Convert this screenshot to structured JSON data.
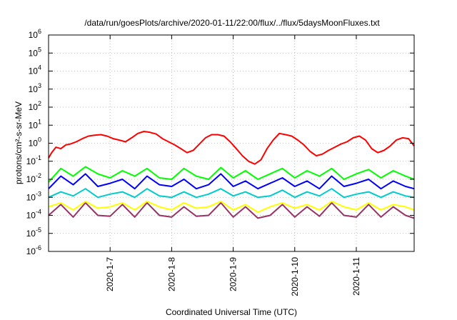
{
  "chart_data": {
    "type": "line",
    "title": "/data/run/goesPlots/archive/2020-01-11/22:00/flux/../flux/5daysMoonFluxes.txt",
    "xlabel": "Coordinated Universal Time (UTC)",
    "ylabel": "protons/cm²-s-sr-MeV",
    "y_scale": "log",
    "ylim": [
      1e-06,
      1000000.0
    ],
    "xlim": [
      6.0,
      11.94
    ],
    "x_unit": "January 2020 (day of month)",
    "x_ticks": [
      {
        "x": 7,
        "label": "2020-1-7"
      },
      {
        "x": 8,
        "label": "2020-1-8"
      },
      {
        "x": 9,
        "label": "2020-1-9"
      },
      {
        "x": 10,
        "label": "2020-1-10"
      },
      {
        "x": 11,
        "label": "2020-1-11"
      }
    ],
    "y_ticks": [
      {
        "v": 1e-06,
        "base": "10",
        "exp": "-6"
      },
      {
        "v": 1e-05,
        "base": "10",
        "exp": "-5"
      },
      {
        "v": 0.0001,
        "base": "10",
        "exp": "-4"
      },
      {
        "v": 0.001,
        "base": "10",
        "exp": "-3"
      },
      {
        "v": 0.01,
        "base": "10",
        "exp": "-2"
      },
      {
        "v": 0.1,
        "base": "10",
        "exp": "-1"
      },
      {
        "v": 1.0,
        "base": "10",
        "exp": "0"
      },
      {
        "v": 10.0,
        "base": "10",
        "exp": "1"
      },
      {
        "v": 100.0,
        "base": "10",
        "exp": "2"
      },
      {
        "v": 1000.0,
        "base": "10",
        "exp": "3"
      },
      {
        "v": 10000.0,
        "base": "10",
        "exp": "4"
      },
      {
        "v": 100000.0,
        "base": "10",
        "exp": "5"
      },
      {
        "v": 1000000.0,
        "base": "10",
        "exp": "6"
      }
    ],
    "grid": true,
    "series": [
      {
        "color": "#ff0000",
        "x": [
          6.0,
          6.05,
          6.12,
          6.2,
          6.28,
          6.35,
          6.45,
          6.55,
          6.65,
          6.75,
          6.85,
          6.95,
          7.05,
          7.15,
          7.25,
          7.35,
          7.45,
          7.55,
          7.65,
          7.75,
          7.85,
          7.95,
          8.05,
          8.15,
          8.25,
          8.35,
          8.45,
          8.55,
          8.65,
          8.75,
          8.85,
          8.95,
          9.05,
          9.15,
          9.25,
          9.35,
          9.45,
          9.55,
          9.65,
          9.75,
          9.85,
          9.95,
          10.05,
          10.15,
          10.25,
          10.35,
          10.45,
          10.55,
          10.65,
          10.75,
          10.85,
          10.95,
          11.05,
          11.15,
          11.25,
          11.35,
          11.45,
          11.55,
          11.65,
          11.75,
          11.85,
          11.94
        ],
        "y": [
          0.15,
          0.3,
          0.6,
          0.5,
          0.8,
          0.9,
          1.2,
          1.8,
          2.5,
          2.8,
          3.0,
          2.5,
          1.8,
          1.5,
          1.2,
          2.0,
          3.5,
          4.5,
          4.0,
          3.2,
          1.8,
          1.2,
          0.8,
          0.5,
          0.3,
          0.4,
          0.9,
          2.0,
          3.0,
          3.0,
          2.5,
          1.2,
          0.5,
          0.2,
          0.1,
          0.07,
          0.12,
          0.5,
          1.5,
          3.5,
          3.0,
          2.5,
          1.5,
          0.8,
          0.35,
          0.2,
          0.25,
          0.4,
          0.6,
          0.9,
          1.2,
          2.0,
          2.5,
          1.5,
          0.5,
          0.3,
          0.4,
          0.7,
          1.5,
          2.0,
          1.8,
          0.7
        ]
      },
      {
        "color": "#00ff00",
        "x": [
          6.0,
          6.2,
          6.4,
          6.6,
          6.8,
          7.0,
          7.2,
          7.4,
          7.6,
          7.8,
          8.0,
          8.2,
          8.4,
          8.6,
          8.8,
          9.0,
          9.2,
          9.4,
          9.6,
          9.8,
          10.0,
          10.2,
          10.4,
          10.6,
          10.8,
          11.0,
          11.2,
          11.4,
          11.6,
          11.8,
          11.94
        ],
        "y": [
          0.007,
          0.04,
          0.015,
          0.05,
          0.02,
          0.012,
          0.03,
          0.015,
          0.04,
          0.012,
          0.01,
          0.04,
          0.015,
          0.01,
          0.045,
          0.012,
          0.03,
          0.01,
          0.02,
          0.04,
          0.012,
          0.03,
          0.015,
          0.04,
          0.01,
          0.02,
          0.035,
          0.012,
          0.03,
          0.015,
          0.01
        ]
      },
      {
        "color": "#0000ff",
        "x": [
          6.0,
          6.2,
          6.4,
          6.6,
          6.8,
          7.0,
          7.2,
          7.4,
          7.6,
          7.8,
          8.0,
          8.2,
          8.4,
          8.6,
          8.8,
          9.0,
          9.2,
          9.4,
          9.6,
          9.8,
          10.0,
          10.2,
          10.4,
          10.6,
          10.8,
          11.0,
          11.2,
          11.4,
          11.6,
          11.8,
          11.94
        ],
        "y": [
          0.003,
          0.015,
          0.005,
          0.02,
          0.004,
          0.006,
          0.01,
          0.003,
          0.015,
          0.005,
          0.004,
          0.01,
          0.003,
          0.005,
          0.02,
          0.004,
          0.008,
          0.003,
          0.006,
          0.012,
          0.004,
          0.008,
          0.003,
          0.015,
          0.004,
          0.006,
          0.01,
          0.003,
          0.008,
          0.004,
          0.003
        ]
      },
      {
        "color": "#00cccc",
        "x": [
          6.0,
          6.2,
          6.4,
          6.6,
          6.8,
          7.0,
          7.2,
          7.4,
          7.6,
          7.8,
          8.0,
          8.2,
          8.4,
          8.6,
          8.8,
          9.0,
          9.2,
          9.4,
          9.6,
          9.8,
          10.0,
          10.2,
          10.4,
          10.6,
          10.8,
          11.0,
          11.2,
          11.4,
          11.6,
          11.8,
          11.94
        ],
        "y": [
          0.001,
          0.002,
          0.0012,
          0.003,
          0.001,
          0.0015,
          0.002,
          0.001,
          0.003,
          0.0012,
          0.001,
          0.002,
          0.001,
          0.0015,
          0.003,
          0.0012,
          0.002,
          0.001,
          0.0012,
          0.0025,
          0.001,
          0.002,
          0.0012,
          0.003,
          0.001,
          0.0015,
          0.002,
          0.001,
          0.002,
          0.0012,
          0.001
        ]
      },
      {
        "color": "#ffff00",
        "x": [
          6.0,
          6.2,
          6.4,
          6.6,
          6.8,
          7.0,
          7.2,
          7.4,
          7.6,
          7.8,
          8.0,
          8.2,
          8.4,
          8.6,
          8.8,
          9.0,
          9.2,
          9.4,
          9.6,
          9.8,
          10.0,
          10.2,
          10.4,
          10.6,
          10.8,
          11.0,
          11.2,
          11.4,
          11.6,
          11.8,
          11.94
        ],
        "y": [
          0.0003,
          0.0005,
          0.0002,
          0.0006,
          0.00025,
          0.0003,
          0.0005,
          0.0002,
          0.0006,
          0.0003,
          0.0002,
          0.0005,
          0.00025,
          0.0003,
          0.0006,
          0.0002,
          0.0004,
          0.00015,
          0.0003,
          0.0005,
          0.00025,
          0.0004,
          0.0002,
          0.0006,
          0.0003,
          0.0002,
          0.0005,
          0.0002,
          0.0004,
          0.0003,
          0.0002
        ]
      },
      {
        "color": "#993366",
        "x": [
          6.0,
          6.2,
          6.4,
          6.6,
          6.8,
          7.0,
          7.2,
          7.4,
          7.6,
          7.8,
          8.0,
          8.2,
          8.4,
          8.6,
          8.8,
          9.0,
          9.2,
          9.4,
          9.6,
          9.8,
          10.0,
          10.2,
          10.4,
          10.6,
          10.8,
          11.0,
          11.2,
          11.4,
          11.6,
          11.8,
          11.94
        ],
        "y": [
          0.0001,
          0.0004,
          8e-05,
          0.0005,
          0.0001,
          9e-05,
          0.0004,
          8e-05,
          0.0005,
          0.0001,
          8e-05,
          0.0003,
          9e-05,
          0.0001,
          0.0005,
          8e-05,
          0.0003,
          7e-05,
          0.0001,
          0.0004,
          8e-05,
          0.0003,
          9e-05,
          0.0005,
          0.0001,
          8e-05,
          0.0004,
          8e-05,
          0.0003,
          0.0001,
          7e-05
        ]
      }
    ]
  }
}
